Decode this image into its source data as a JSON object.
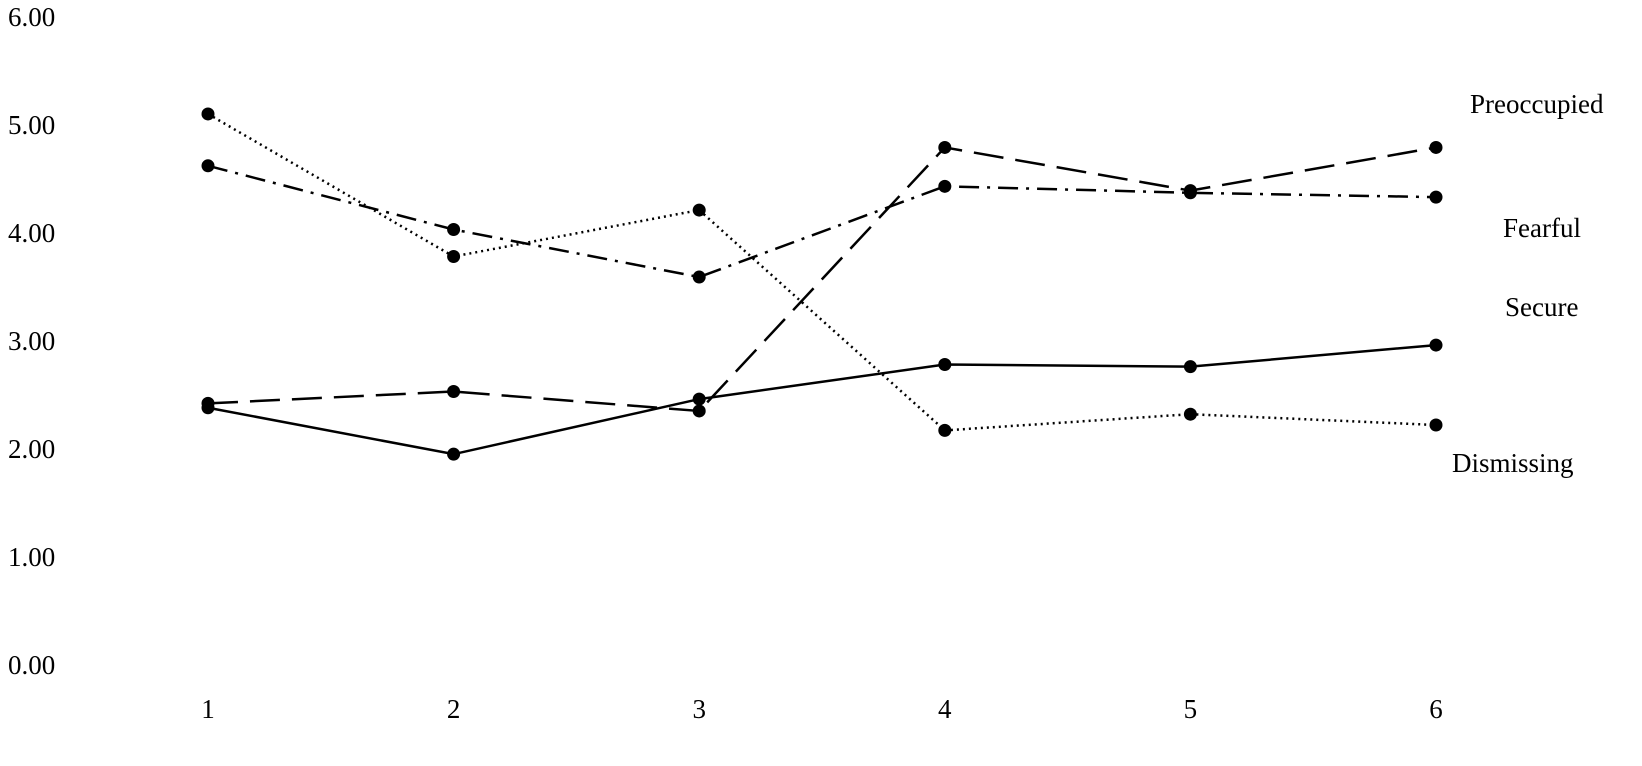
{
  "chart_data": {
    "type": "line",
    "categories": [
      "1",
      "2",
      "3",
      "4",
      "5",
      "6"
    ],
    "series": [
      {
        "name": "Preoccupied",
        "color": "#000000",
        "dash": "dashed",
        "values": [
          2.45,
          2.56,
          2.38,
          4.82,
          4.42,
          4.82
        ]
      },
      {
        "name": "Fearful",
        "color": "#000000",
        "dash": "dashdot",
        "values": [
          4.65,
          4.06,
          3.62,
          4.46,
          4.4,
          4.36
        ]
      },
      {
        "name": "Secure",
        "color": "#000000",
        "dash": "solid",
        "values": [
          2.41,
          1.98,
          2.49,
          2.81,
          2.79,
          2.99
        ]
      },
      {
        "name": "Dismissing",
        "color": "#000000",
        "dash": "dotted",
        "values": [
          5.13,
          3.81,
          4.24,
          2.2,
          2.35,
          2.25
        ]
      }
    ],
    "ylim": [
      0,
      6
    ],
    "yticks": [
      {
        "value": 0,
        "label": "0.00"
      },
      {
        "value": 1,
        "label": "1.00"
      },
      {
        "value": 2,
        "label": "2.00"
      },
      {
        "value": 3,
        "label": "3.00"
      },
      {
        "value": 4,
        "label": "4.00"
      },
      {
        "value": 5,
        "label": "5.00"
      },
      {
        "value": 6,
        "label": "6.00"
      }
    ],
    "grid": false
  }
}
